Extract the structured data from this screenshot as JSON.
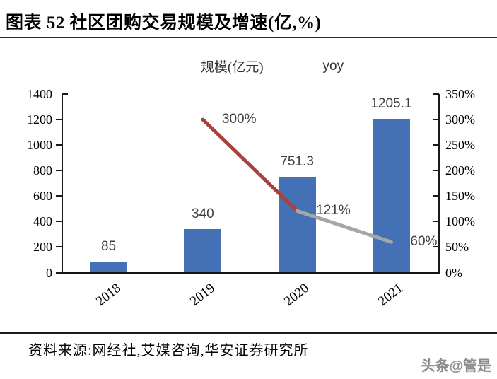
{
  "header": {
    "title": "图表 52 社区团购交易规模及增速(亿,%)"
  },
  "legend": [
    {
      "label": "规模(亿元)",
      "swatch": "bar"
    },
    {
      "label": "yoy",
      "swatch": "line"
    }
  ],
  "chart_data": {
    "type": "bar+line",
    "title": "图表 52 社区团购交易规模及增速(亿,%)",
    "categories": [
      "2018",
      "2019",
      "2020",
      "2021"
    ],
    "series": [
      {
        "name": "规模(亿元)",
        "type": "bar",
        "axis": "left",
        "values": [
          85,
          340,
          751.3,
          1205.1
        ],
        "labels": [
          "85",
          "340",
          "751.3",
          "1205.1"
        ],
        "color": "#4471B5"
      },
      {
        "name": "yoy",
        "type": "line",
        "axis": "right",
        "values": [
          null,
          3.0,
          1.21,
          0.6
        ],
        "labels": [
          null,
          "300%",
          "121%",
          "60%"
        ],
        "segment_colors": [
          "#A8423C",
          "#A6A6A6"
        ]
      }
    ],
    "left_axis": {
      "min": 0,
      "max": 1400,
      "step": 200,
      "ticks": [
        "0",
        "200",
        "400",
        "600",
        "800",
        "1000",
        "1200",
        "1400"
      ]
    },
    "right_axis": {
      "min": 0,
      "max": 3.5,
      "step": 0.5,
      "ticks": [
        "0%",
        "50%",
        "100%",
        "150%",
        "200%",
        "250%",
        "300%",
        "350%"
      ]
    },
    "grid": false,
    "legend_position": "top"
  },
  "colors": {
    "bar": "#4471B5",
    "line_red": "#A8423C",
    "line_gray": "#A6A6A6",
    "axis": "#1a1a1a",
    "data_label": "#3f3f3f"
  },
  "footer": {
    "source": "资料来源:网经社,艾媒咨询,华安证券研究所",
    "watermark": "头条@管是"
  }
}
